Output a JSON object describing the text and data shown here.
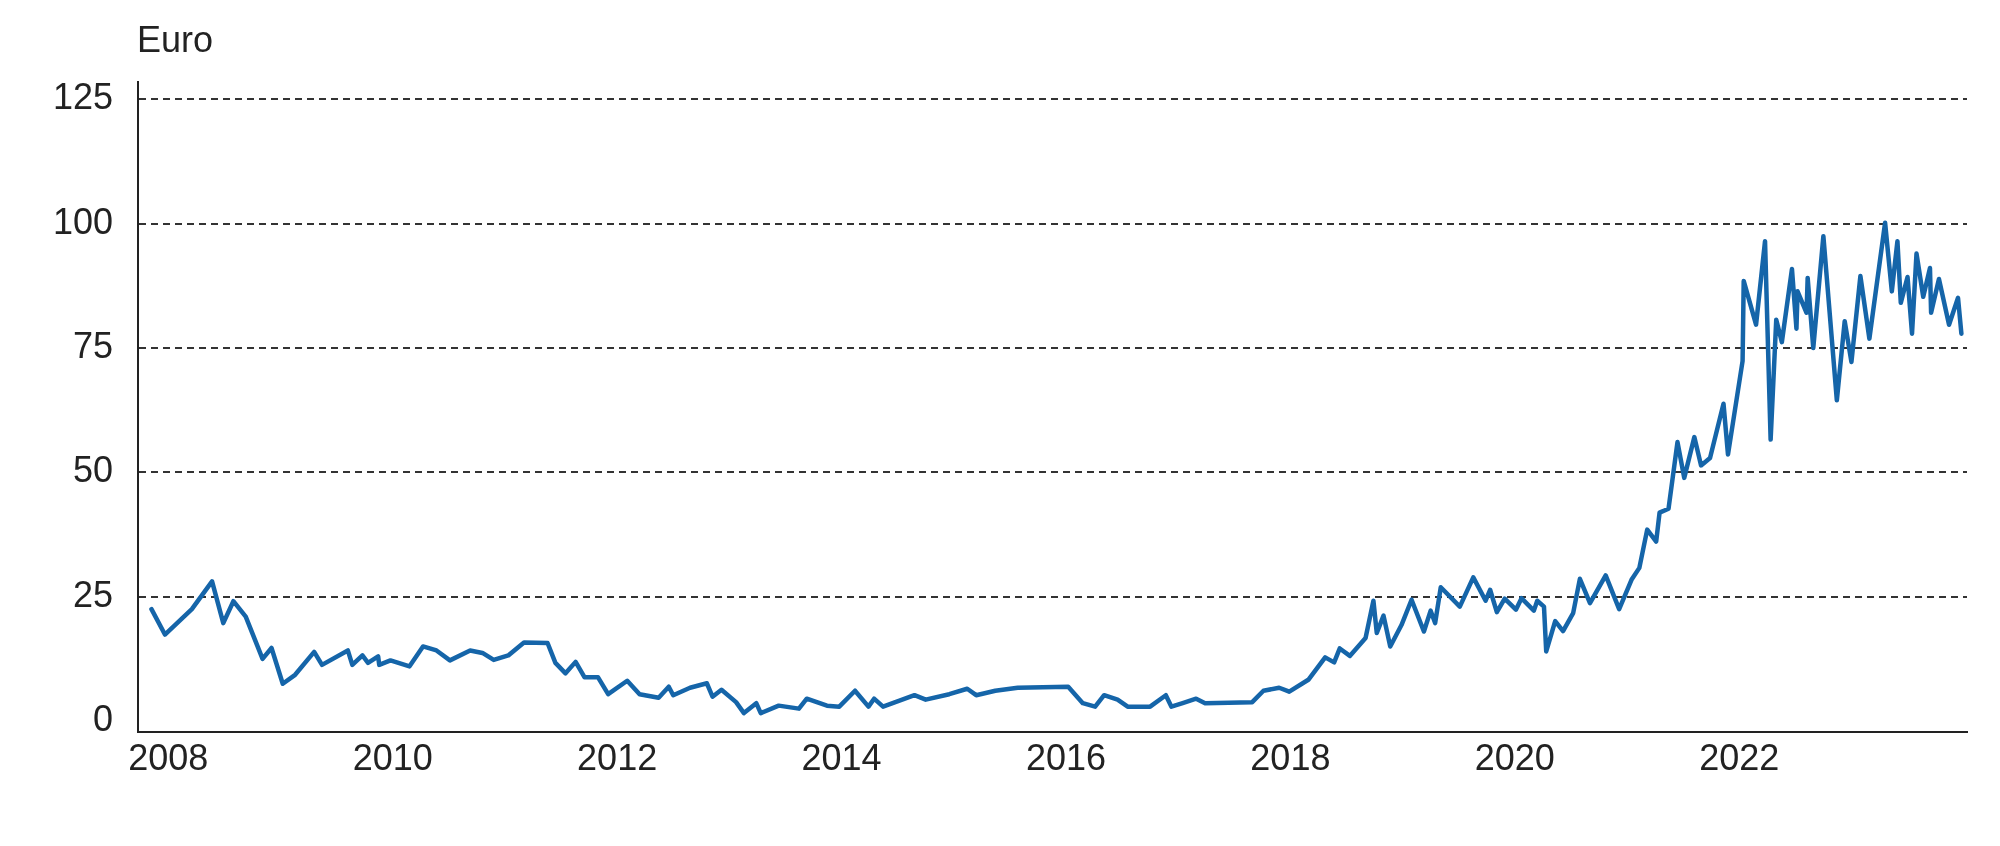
{
  "chart_data": {
    "type": "line",
    "ylabel": "Euro",
    "color": "#1565a9",
    "line_style": "solid",
    "grid": "y",
    "xlim": [
      2007.73,
      2024.03
    ],
    "xticks": [
      2008,
      2010,
      2012,
      2014,
      2016,
      2018,
      2020,
      2022
    ],
    "ylim": [
      -2.2,
      128.5
    ],
    "yticks": [
      0,
      25,
      50,
      75,
      100,
      125
    ],
    "x": [
      2007.85,
      2007.97,
      2008.21,
      2008.39,
      2008.49,
      2008.58,
      2008.69,
      2008.84,
      2008.92,
      2009.02,
      2009.13,
      2009.3,
      2009.37,
      2009.6,
      2009.64,
      2009.73,
      2009.78,
      2009.87,
      2009.88,
      2009.98,
      2010.15,
      2010.27,
      2010.39,
      2010.51,
      2010.69,
      2010.8,
      2010.9,
      2011.03,
      2011.17,
      2011.38,
      2011.45,
      2011.54,
      2011.63,
      2011.71,
      2011.83,
      2011.92,
      2012.09,
      2012.2,
      2012.37,
      2012.46,
      2012.5,
      2012.65,
      2012.8,
      2012.85,
      2012.93,
      2013.06,
      2013.13,
      2013.24,
      2013.28,
      2013.44,
      2013.62,
      2013.69,
      2013.87,
      2013.98,
      2014.12,
      2014.24,
      2014.29,
      2014.37,
      2014.65,
      2014.75,
      2014.96,
      2015.12,
      2015.2,
      2015.37,
      2015.57,
      2016.02,
      2016.15,
      2016.26,
      2016.34,
      2016.46,
      2016.55,
      2016.75,
      2016.89,
      2016.94,
      2017.04,
      2017.16,
      2017.24,
      2017.66,
      2017.76,
      2017.9,
      2017.99,
      2018.16,
      2018.31,
      2018.39,
      2018.44,
      2018.53,
      2018.67,
      2018.74,
      2018.77,
      2018.83,
      2018.89,
      2018.99,
      2019.08,
      2019.19,
      2019.25,
      2019.29,
      2019.34,
      2019.51,
      2019.63,
      2019.74,
      2019.78,
      2019.84,
      2019.91,
      2020.01,
      2020.06,
      2020.17,
      2020.2,
      2020.26,
      2020.28,
      2020.36,
      2020.43,
      2020.52,
      2020.58,
      2020.67,
      2020.81,
      2020.93,
      2021.04,
      2021.11,
      2021.18,
      2021.26,
      2021.29,
      2021.37,
      2021.45,
      2021.51,
      2021.6,
      2021.66,
      2021.74,
      2021.86,
      2021.9,
      2022.03,
      2022.04,
      2022.15,
      2022.23,
      2022.28,
      2022.33,
      2022.38,
      2022.47,
      2022.51,
      2022.52,
      2022.6,
      2022.61,
      2022.66,
      2022.75,
      2022.87,
      2022.94,
      2023.0,
      2023.08,
      2023.16,
      2023.3,
      2023.36,
      2023.41,
      2023.44,
      2023.5,
      2023.54,
      2023.58,
      2023.64,
      2023.7,
      2023.71,
      2023.78,
      2023.87,
      2023.95,
      2023.98
    ],
    "values": [
      22.5,
      17.4,
      22.5,
      28.1,
      19.7,
      24.1,
      21.0,
      12.5,
      14.7,
      7.5,
      9.3,
      13.9,
      11.3,
      14.2,
      11.3,
      13.2,
      11.7,
      13.0,
      11.3,
      12.2,
      11.0,
      15.0,
      14.2,
      12.2,
      14.2,
      13.7,
      12.3,
      13.2,
      15.8,
      15.7,
      11.7,
      9.6,
      11.9,
      8.8,
      8.8,
      5.4,
      8.1,
      5.4,
      4.7,
      6.9,
      5.2,
      6.7,
      7.6,
      4.9,
      6.3,
      3.8,
      1.6,
      3.6,
      1.6,
      3.1,
      2.5,
      4.5,
      3.1,
      2.9,
      6.1,
      2.9,
      4.5,
      2.9,
      5.2,
      4.3,
      5.4,
      6.5,
      5.2,
      6.1,
      6.7,
      6.9,
      3.6,
      2.9,
      5.2,
      4.3,
      2.9,
      2.9,
      5.2,
      2.9,
      3.6,
      4.5,
      3.6,
      3.8,
      6.1,
      6.7,
      5.9,
      8.3,
      12.8,
      11.8,
      14.6,
      13.1,
      16.7,
      24.2,
      17.7,
      21.2,
      15.0,
      19.3,
      24.4,
      18.0,
      22.2,
      19.7,
      26.9,
      23.0,
      28.9,
      24.2,
      26.4,
      21.9,
      24.6,
      22.4,
      24.7,
      22.2,
      24.2,
      23.0,
      14.0,
      20.1,
      18.1,
      21.7,
      28.6,
      23.7,
      29.3,
      22.5,
      28.4,
      30.8,
      38.5,
      36.1,
      41.9,
      42.7,
      56.1,
      48.9,
      57.1,
      51.4,
      52.9,
      63.8,
      53.6,
      72.4,
      88.5,
      79.7,
      96.5,
      56.6,
      80.7,
      76.2,
      90.9,
      78.9,
      86.4,
      82.1,
      89.1,
      75.0,
      97.5,
      64.5,
      80.4,
      72.2,
      89.5,
      76.9,
      100.2,
      86.4,
      96.5,
      84.1,
      89.3,
      77.9,
      94.0,
      85.3,
      91.1,
      82.1,
      88.9,
      79.7,
      85.1,
      77.9
    ]
  }
}
